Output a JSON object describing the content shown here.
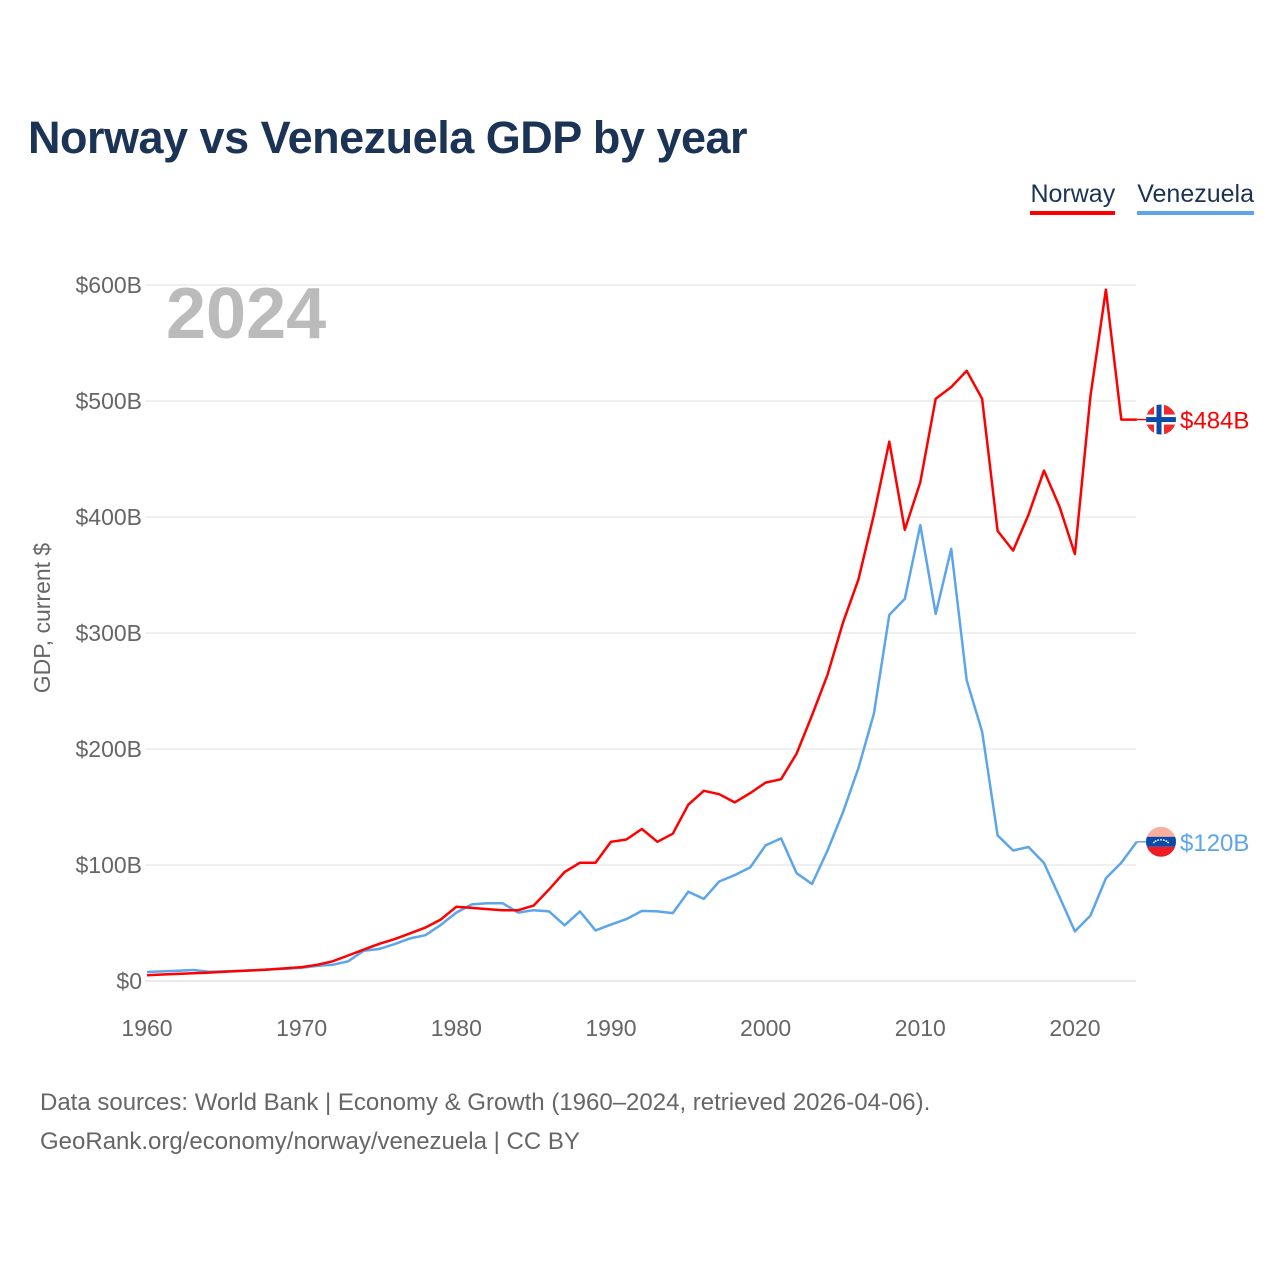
{
  "title": "Norway vs Venezuela GDP by year",
  "current_year_label": "2024",
  "footer": {
    "line1": "Data sources: World Bank | Economy & Growth (1960–2024, retrieved 2026-04-06).",
    "line2": "GeoRank.org/economy/norway/venezuela | CC BY"
  },
  "chart_data": {
    "type": "line",
    "title": "Norway vs Venezuela GDP by year",
    "xlabel": "",
    "ylabel": "GDP, current $",
    "xlim": [
      1960,
      2024
    ],
    "ylim": [
      0,
      600
    ],
    "x_ticks": [
      1960,
      1970,
      1980,
      1990,
      2000,
      2010,
      2020
    ],
    "y_ticks": [
      0,
      100,
      200,
      300,
      400,
      500,
      600
    ],
    "y_tick_labels": [
      "$0",
      "$100B",
      "$200B",
      "$300B",
      "$400B",
      "$500B",
      "$600B"
    ],
    "grid": true,
    "legend_position": "top-right",
    "units": "billion USD",
    "x_start": 1960,
    "series": [
      {
        "name": "Norway",
        "color": "#ff0000",
        "end_label": "$484B",
        "flag": "norway-flag",
        "values": [
          5,
          5.6,
          6.1,
          6.6,
          7.2,
          8,
          8.6,
          9.3,
          10,
          11,
          12,
          14,
          17,
          22,
          27,
          32,
          36,
          41,
          46,
          53,
          64,
          63,
          62,
          61,
          61,
          65,
          79,
          94,
          102,
          102,
          120,
          122,
          131,
          120,
          127,
          152,
          164,
          161,
          154,
          162,
          171,
          174,
          196,
          229,
          264,
          309,
          346,
          402,
          465,
          389,
          430,
          502,
          512,
          526,
          502,
          388,
          371,
          402,
          440,
          409,
          368,
          504,
          596,
          484,
          484
        ]
      },
      {
        "name": "Venezuela",
        "color": "#5da5ea",
        "end_label": "$120B",
        "flag": "venezuela-flag",
        "values": [
          7.8,
          8.3,
          8.9,
          9.5,
          8,
          8.3,
          8.8,
          9.3,
          10,
          10.5,
          11.5,
          13,
          14,
          17,
          26,
          27.6,
          31.7,
          36.7,
          39.5,
          48.4,
          59,
          66,
          67,
          67,
          59,
          61,
          60,
          48,
          60,
          43.6,
          48.6,
          53.4,
          60.4,
          60,
          58.5,
          77,
          70.8,
          85.8,
          91.3,
          97.9,
          117,
          122.9,
          92.9,
          83.6,
          112.5,
          145.5,
          183.5,
          230.4,
          315.6,
          329.4,
          393,
          316.5,
          372.6,
          259.2,
          215,
          125.5,
          112.5,
          115.5,
          101.7,
          72.5,
          42.8,
          56.4,
          88.5,
          102,
          120
        ]
      }
    ]
  }
}
